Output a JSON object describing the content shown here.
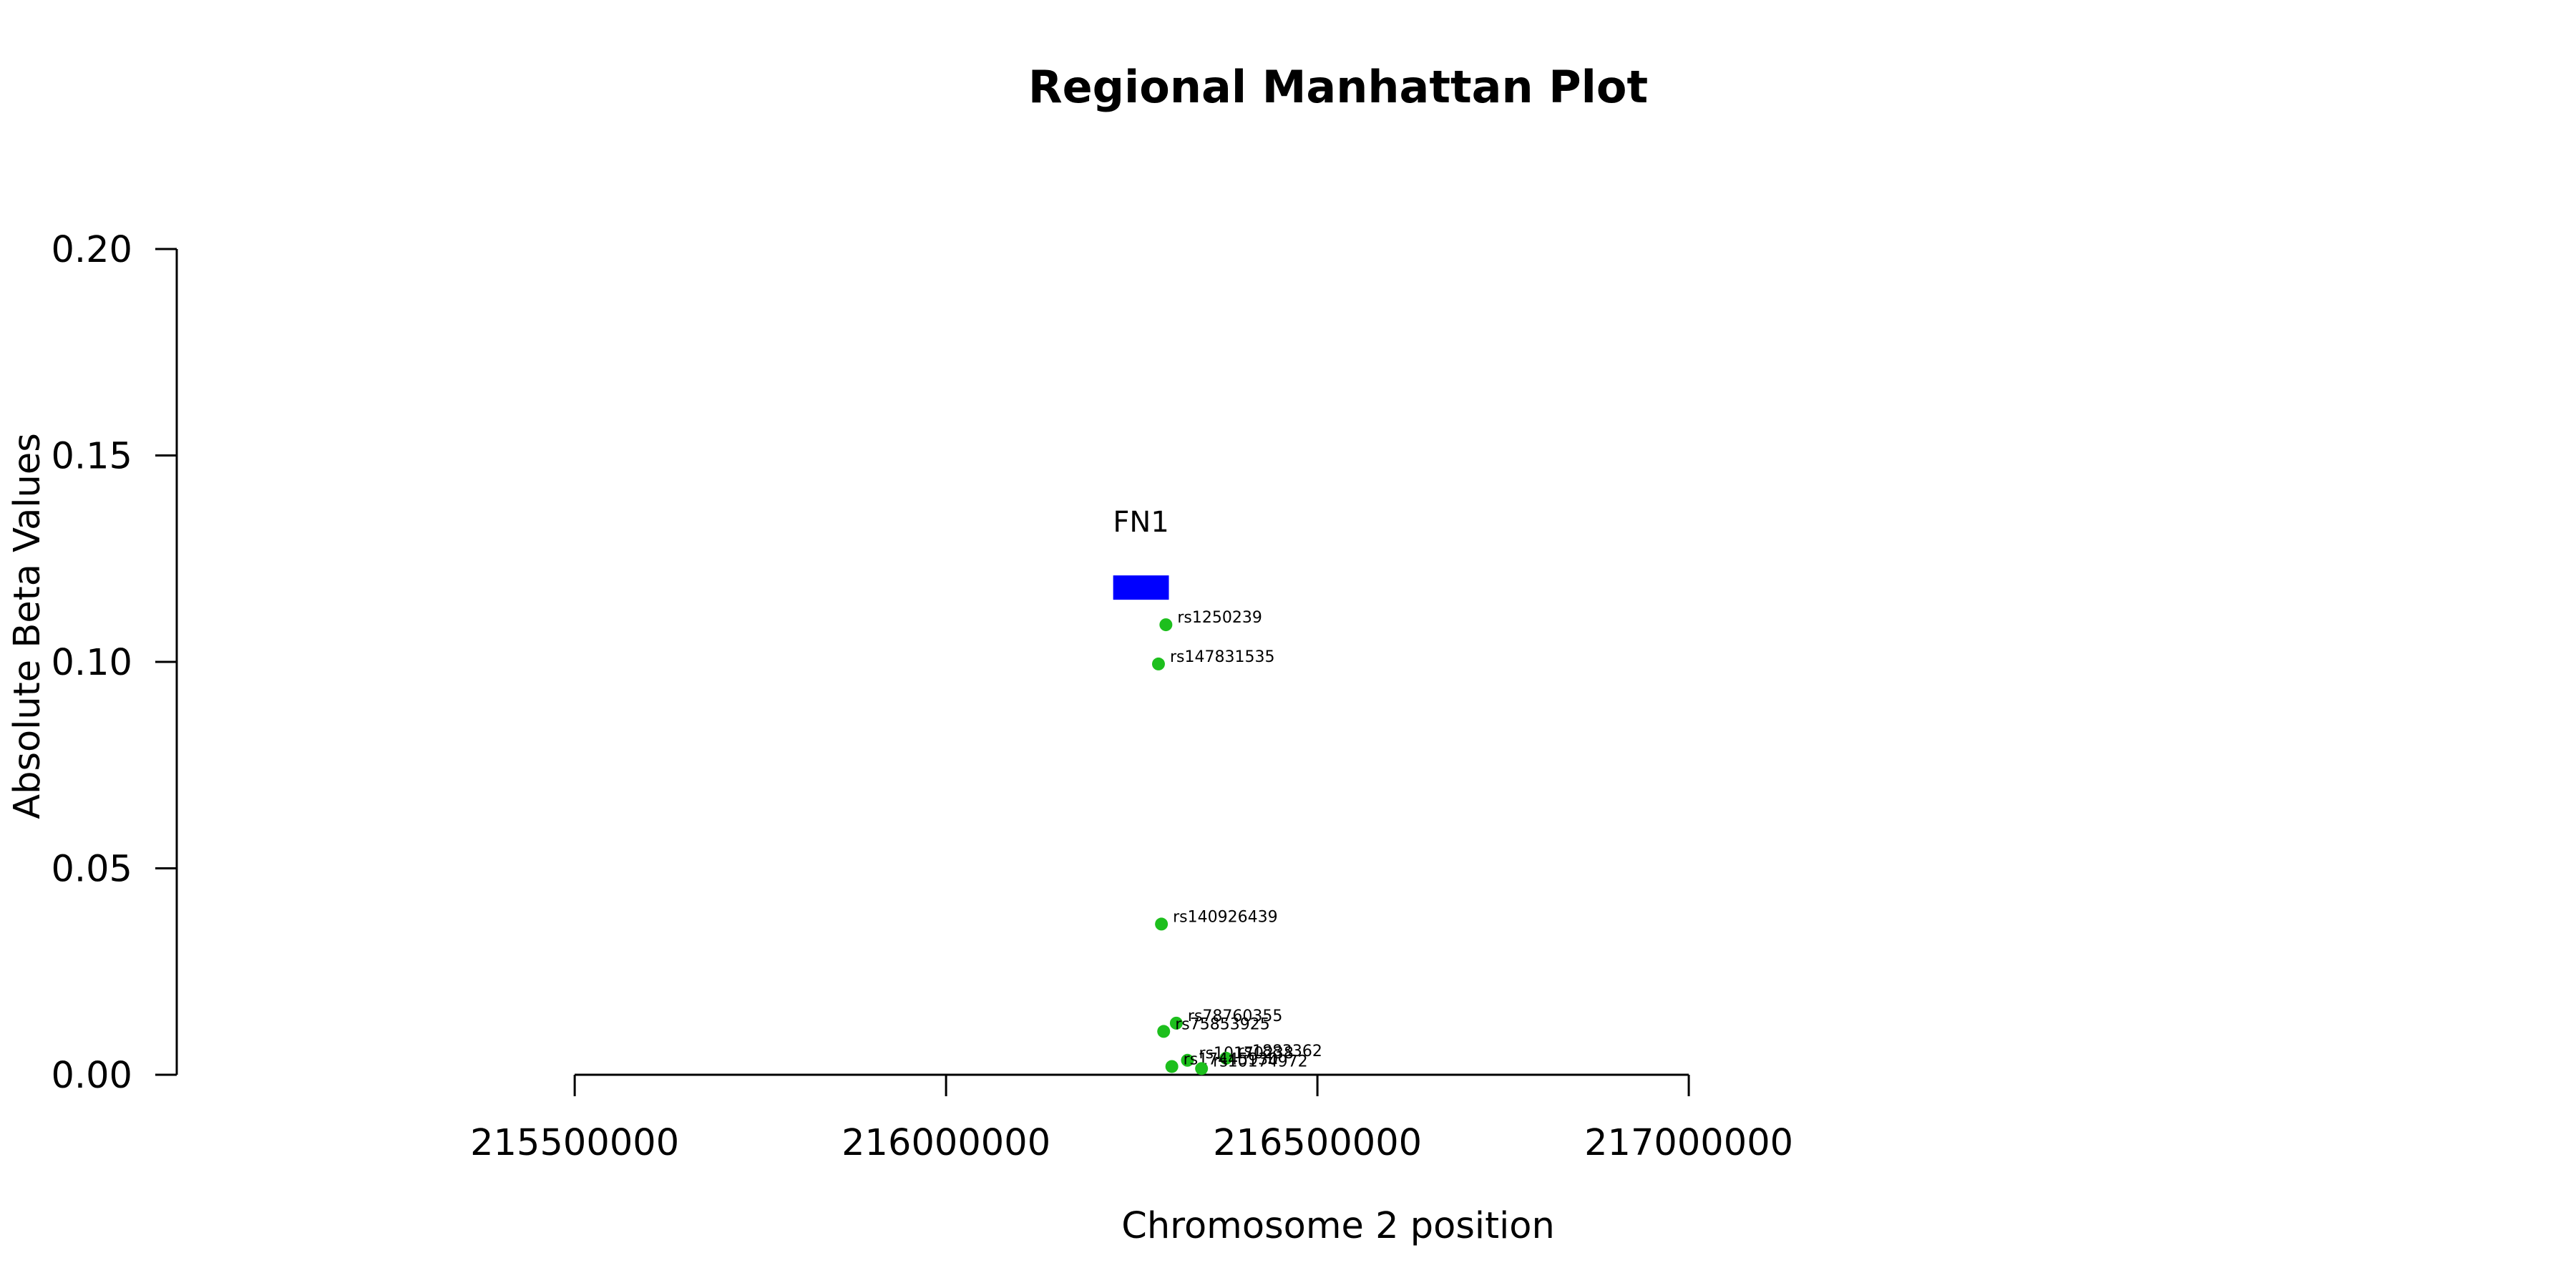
{
  "chart_data": {
    "type": "scatter",
    "title": "Regional Manhattan Plot",
    "xlabel": "Chromosome 2 position",
    "ylabel": "Absolute Beta Values",
    "xlim": [
      215285000,
      217525000
    ],
    "ylim": [
      0,
      0.2
    ],
    "x_ticks": [
      215500000,
      216000000,
      216500000,
      217000000
    ],
    "x_tick_labels": [
      "215500000",
      "216000000",
      "216500000",
      "217000000"
    ],
    "y_ticks": [
      0,
      0.05,
      0.1,
      0.15,
      0.2
    ],
    "y_tick_labels": [
      "0.00",
      "0.05",
      "0.10",
      "0.15",
      "0.20"
    ],
    "point_color": "#1dbf1d",
    "gene_color": "#0000ff",
    "genes": [
      {
        "name": "FN1",
        "start": 216225000,
        "end": 216300000,
        "y": 0.118
      }
    ],
    "points": [
      {
        "label": "rs1250239",
        "x": 216296000,
        "y": 0.109
      },
      {
        "label": "rs147831535",
        "x": 216286000,
        "y": 0.0995
      },
      {
        "label": "rs140926439",
        "x": 216290000,
        "y": 0.0365
      },
      {
        "label": "rs78760355",
        "x": 216310000,
        "y": 0.0125
      },
      {
        "label": "rs75853925",
        "x": 216293000,
        "y": 0.0105
      },
      {
        "label": "rs10170238",
        "x": 216325000,
        "y": 0.0035
      },
      {
        "label": "rs1883362",
        "x": 216377000,
        "y": 0.004
      },
      {
        "label": "rs17445930",
        "x": 216304000,
        "y": 0.002
      },
      {
        "label": "rs10174972",
        "x": 216344000,
        "y": 0.0015
      }
    ]
  }
}
